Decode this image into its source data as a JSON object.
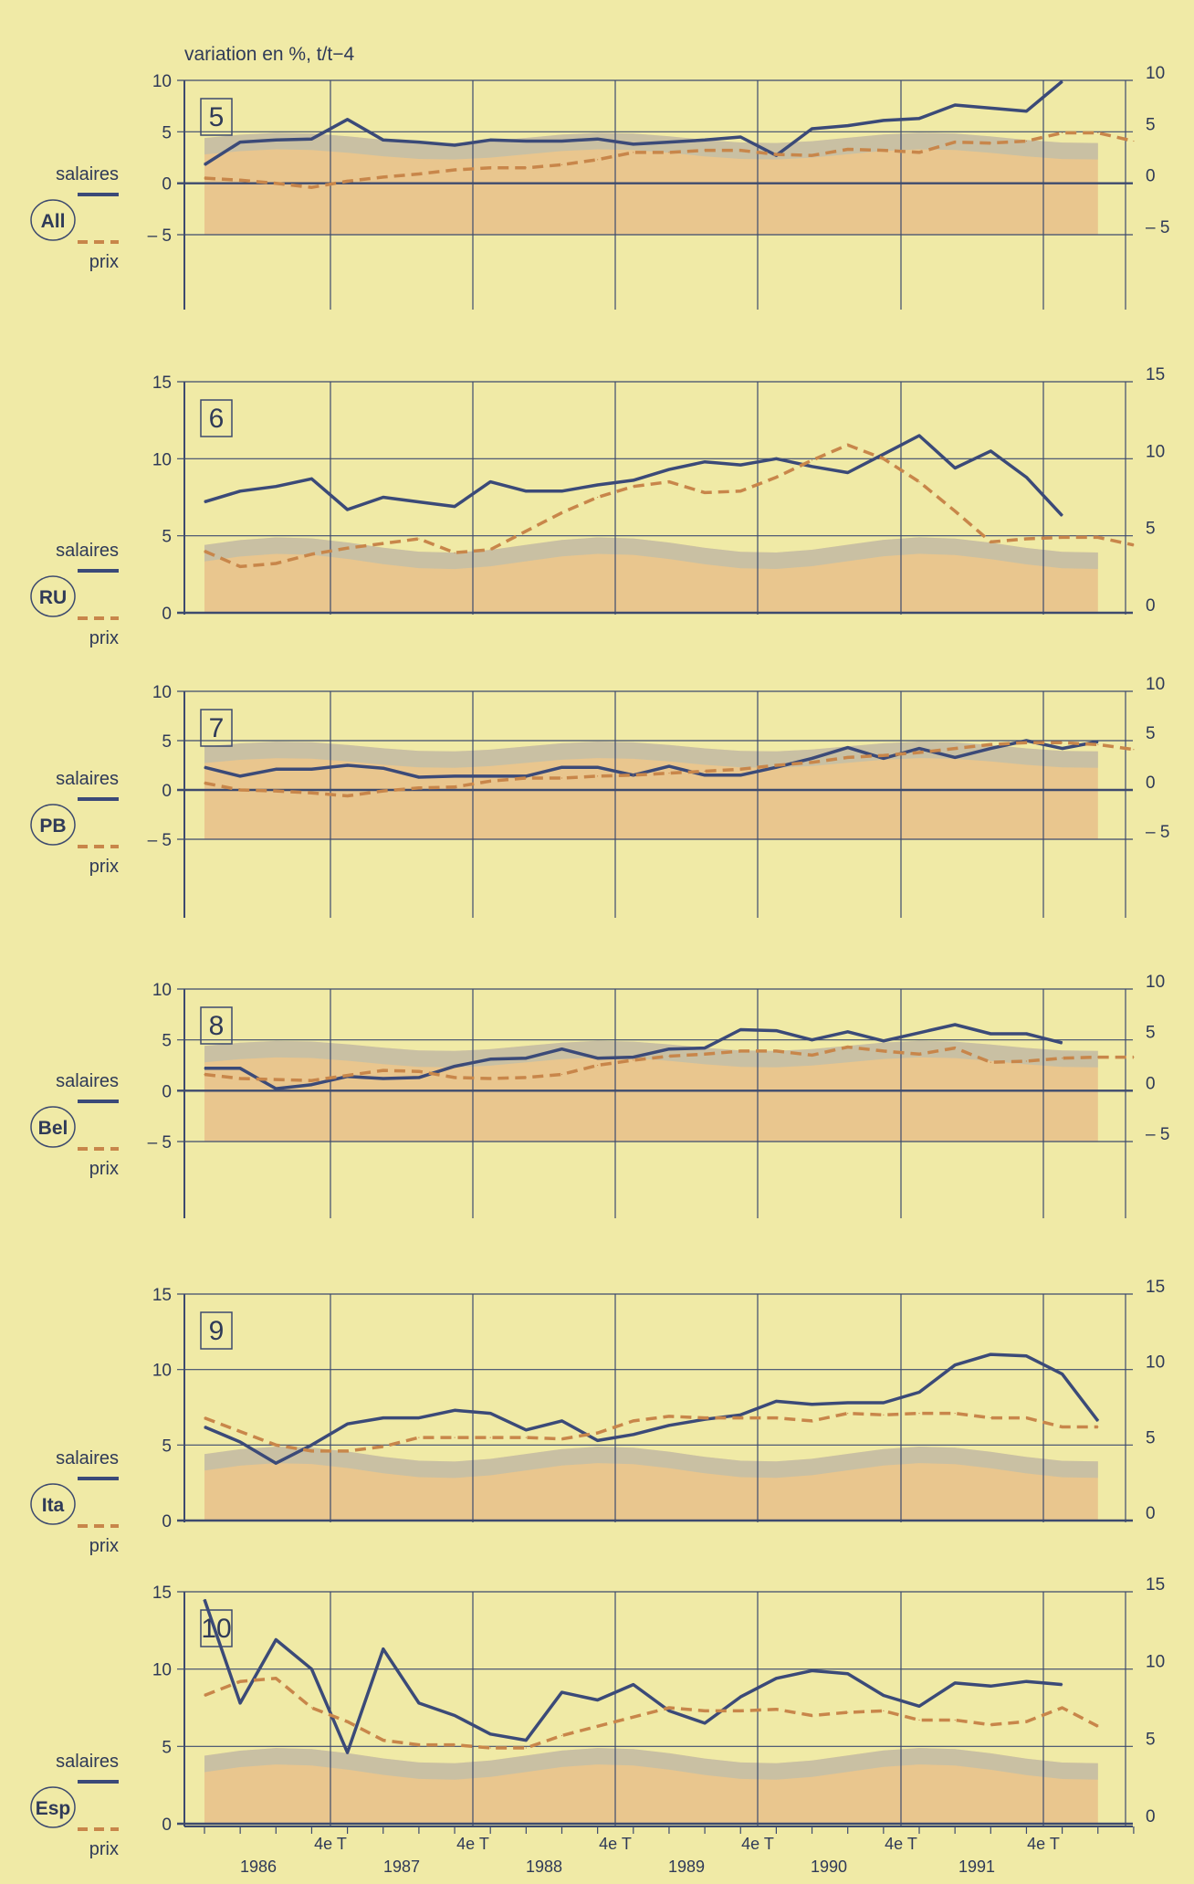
{
  "unit_label": "variation en %, t/t−4",
  "legend": {
    "wage_label": "salaires",
    "price_label": "prix"
  },
  "colors": {
    "background": "#f0eaa6",
    "grid": "#3d4a6e",
    "wage_line": "#3b4a78",
    "price_line": "#c8864a",
    "band_fill": "#e8c08a",
    "band_top": "#b4bcb0"
  },
  "x_axis": {
    "quarter_markers": [
      "4e T",
      "4e T",
      "4e T",
      "4e T",
      "4e T",
      "4e T"
    ],
    "years": [
      "1986",
      "1987",
      "1988",
      "1989",
      "1990",
      "1991"
    ]
  },
  "chart_data": [
    {
      "type": "line",
      "panel_number": "5",
      "country": "All",
      "ylim": [
        -5,
        10
      ],
      "y_ticks": [
        -5,
        0,
        5,
        10
      ],
      "x": [
        "1985 T3",
        "1985 T4",
        "1986 T1",
        "1986 T2",
        "1986 T3",
        "1986 T4",
        "1987 T1",
        "1987 T2",
        "1987 T3",
        "1987 T4",
        "1988 T1",
        "1988 T2",
        "1988 T3",
        "1988 T4",
        "1989 T1",
        "1989 T2",
        "1989 T3",
        "1989 T4",
        "1990 T1",
        "1990 T2",
        "1990 T3",
        "1990 T4",
        "1991 T1",
        "1991 T2",
        "1991 T3",
        "1991 T4",
        "1992 T1"
      ],
      "series": [
        {
          "name": "salaires",
          "style": "solid",
          "values": [
            1.8,
            4.0,
            4.2,
            4.3,
            6.2,
            4.2,
            4.0,
            3.7,
            4.2,
            4.1,
            4.1,
            4.3,
            3.8,
            4.0,
            4.2,
            4.5,
            2.7,
            5.3,
            5.6,
            6.1,
            6.3,
            7.6,
            7.3,
            7.0,
            9.9,
            null,
            null
          ]
        },
        {
          "name": "prix",
          "style": "dashed",
          "values": [
            0.5,
            0.3,
            0.0,
            -0.4,
            0.2,
            0.6,
            0.9,
            1.3,
            1.5,
            1.5,
            1.8,
            2.3,
            3.0,
            3.0,
            3.2,
            3.2,
            2.8,
            2.7,
            3.3,
            3.2,
            3.0,
            4.0,
            3.9,
            4.1,
            4.9,
            4.9,
            4.1
          ]
        }
      ]
    },
    {
      "type": "line",
      "panel_number": "6",
      "country": "RU",
      "ylim": [
        0,
        15
      ],
      "y_ticks": [
        0,
        5,
        10,
        15
      ],
      "x": [
        "1985 T3",
        "1985 T4",
        "1986 T1",
        "1986 T2",
        "1986 T3",
        "1986 T4",
        "1987 T1",
        "1987 T2",
        "1987 T3",
        "1987 T4",
        "1988 T1",
        "1988 T2",
        "1988 T3",
        "1988 T4",
        "1989 T1",
        "1989 T2",
        "1989 T3",
        "1989 T4",
        "1990 T1",
        "1990 T2",
        "1990 T3",
        "1990 T4",
        "1991 T1",
        "1991 T2",
        "1991 T3",
        "1991 T4",
        "1992 T1"
      ],
      "series": [
        {
          "name": "salaires",
          "style": "solid",
          "values": [
            7.2,
            7.9,
            8.2,
            8.7,
            6.7,
            7.5,
            7.2,
            6.9,
            8.5,
            7.9,
            7.9,
            8.3,
            8.6,
            9.3,
            9.8,
            9.6,
            10.0,
            9.5,
            9.1,
            10.3,
            11.5,
            9.4,
            10.5,
            8.8,
            6.3,
            null,
            null
          ]
        },
        {
          "name": "prix",
          "style": "dashed",
          "values": [
            4.0,
            3.0,
            3.2,
            3.8,
            4.2,
            4.5,
            4.8,
            3.9,
            4.1,
            5.3,
            6.5,
            7.5,
            8.2,
            8.5,
            7.8,
            7.9,
            8.8,
            9.9,
            10.9,
            10.0,
            8.5,
            6.6,
            4.6,
            4.8,
            4.9,
            4.9,
            4.4
          ]
        }
      ]
    },
    {
      "type": "line",
      "panel_number": "7",
      "country": "PB",
      "ylim": [
        -5,
        10
      ],
      "y_ticks": [
        -5,
        0,
        5,
        10
      ],
      "x": [
        "1985 T3",
        "1985 T4",
        "1986 T1",
        "1986 T2",
        "1986 T3",
        "1986 T4",
        "1987 T1",
        "1987 T2",
        "1987 T3",
        "1987 T4",
        "1988 T1",
        "1988 T2",
        "1988 T3",
        "1988 T4",
        "1989 T1",
        "1989 T2",
        "1989 T3",
        "1989 T4",
        "1990 T1",
        "1990 T2",
        "1990 T3",
        "1990 T4",
        "1991 T1",
        "1991 T2",
        "1991 T3",
        "1991 T4",
        "1992 T1"
      ],
      "series": [
        {
          "name": "salaires",
          "style": "solid",
          "values": [
            2.3,
            1.4,
            2.1,
            2.1,
            2.5,
            2.2,
            1.3,
            1.4,
            1.4,
            1.4,
            2.3,
            2.3,
            1.5,
            2.4,
            1.5,
            1.5,
            2.3,
            3.2,
            4.3,
            3.2,
            4.2,
            3.3,
            4.2,
            5.0,
            4.2,
            4.9,
            null
          ]
        },
        {
          "name": "prix",
          "style": "dashed",
          "values": [
            0.7,
            0.0,
            -0.1,
            -0.3,
            -0.6,
            -0.1,
            0.2,
            0.3,
            0.9,
            1.2,
            1.2,
            1.4,
            1.5,
            1.7,
            1.9,
            2.1,
            2.5,
            2.8,
            3.3,
            3.5,
            3.8,
            4.2,
            4.6,
            4.8,
            4.8,
            4.6,
            4.1
          ]
        }
      ]
    },
    {
      "type": "line",
      "panel_number": "8",
      "country": "Bel",
      "ylim": [
        -5,
        10
      ],
      "y_ticks": [
        -5,
        0,
        5,
        10
      ],
      "x": [
        "1985 T3",
        "1985 T4",
        "1986 T1",
        "1986 T2",
        "1986 T3",
        "1986 T4",
        "1987 T1",
        "1987 T2",
        "1987 T3",
        "1987 T4",
        "1988 T1",
        "1988 T2",
        "1988 T3",
        "1988 T4",
        "1989 T1",
        "1989 T2",
        "1989 T3",
        "1989 T4",
        "1990 T1",
        "1990 T2",
        "1990 T3",
        "1990 T4",
        "1991 T1",
        "1991 T2",
        "1991 T3",
        "1991 T4",
        "1992 T1"
      ],
      "series": [
        {
          "name": "salaires",
          "style": "solid",
          "values": [
            2.2,
            2.2,
            0.2,
            0.6,
            1.4,
            1.2,
            1.3,
            2.4,
            3.1,
            3.2,
            4.1,
            3.2,
            3.3,
            4.1,
            4.2,
            6.0,
            5.9,
            5.0,
            5.8,
            4.9,
            5.7,
            6.5,
            5.6,
            5.6,
            4.7,
            null,
            null
          ]
        },
        {
          "name": "prix",
          "style": "dashed",
          "values": [
            1.6,
            1.2,
            1.1,
            1.0,
            1.5,
            2.0,
            1.9,
            1.3,
            1.2,
            1.3,
            1.6,
            2.5,
            3.0,
            3.4,
            3.6,
            3.9,
            3.9,
            3.5,
            4.3,
            3.9,
            3.6,
            4.2,
            2.8,
            2.9,
            3.2,
            3.3,
            3.3
          ]
        }
      ]
    },
    {
      "type": "line",
      "panel_number": "9",
      "country": "Ita",
      "ylim": [
        0,
        15
      ],
      "y_ticks": [
        0,
        5,
        10,
        15
      ],
      "x": [
        "1985 T3",
        "1985 T4",
        "1986 T1",
        "1986 T2",
        "1986 T3",
        "1986 T4",
        "1987 T1",
        "1987 T2",
        "1987 T3",
        "1987 T4",
        "1988 T1",
        "1988 T2",
        "1988 T3",
        "1988 T4",
        "1989 T1",
        "1989 T2",
        "1989 T3",
        "1989 T4",
        "1990 T1",
        "1990 T2",
        "1990 T3",
        "1990 T4",
        "1991 T1",
        "1991 T2",
        "1991 T3",
        "1991 T4",
        "1992 T1"
      ],
      "series": [
        {
          "name": "salaires",
          "style": "solid",
          "values": [
            6.2,
            5.2,
            3.8,
            5.0,
            6.4,
            6.8,
            6.8,
            7.3,
            7.1,
            6.0,
            6.6,
            5.3,
            5.7,
            6.3,
            6.7,
            7.0,
            7.9,
            7.7,
            7.8,
            7.8,
            8.5,
            10.3,
            11.0,
            10.9,
            9.7,
            6.6,
            null
          ]
        },
        {
          "name": "prix",
          "style": "dashed",
          "values": [
            6.8,
            5.9,
            5.0,
            4.6,
            4.6,
            4.9,
            5.5,
            5.5,
            5.5,
            5.5,
            5.4,
            5.8,
            6.6,
            6.9,
            6.8,
            6.8,
            6.8,
            6.6,
            7.1,
            7.0,
            7.1,
            7.1,
            6.8,
            6.8,
            6.2,
            6.2,
            null
          ]
        }
      ]
    },
    {
      "type": "line",
      "panel_number": "10",
      "country": "Esp",
      "ylim": [
        0,
        15
      ],
      "y_ticks": [
        0,
        5,
        10,
        15
      ],
      "x": [
        "1985 T3",
        "1985 T4",
        "1986 T1",
        "1986 T2",
        "1986 T3",
        "1986 T4",
        "1987 T1",
        "1987 T2",
        "1987 T3",
        "1987 T4",
        "1988 T1",
        "1988 T2",
        "1988 T3",
        "1988 T4",
        "1989 T1",
        "1989 T2",
        "1989 T3",
        "1989 T4",
        "1990 T1",
        "1990 T2",
        "1990 T3",
        "1990 T4",
        "1991 T1",
        "1991 T2",
        "1991 T3",
        "1991 T4",
        "1992 T1"
      ],
      "series": [
        {
          "name": "salaires",
          "style": "solid",
          "values": [
            14.5,
            7.8,
            11.9,
            10.0,
            4.6,
            11.3,
            7.8,
            7.0,
            5.8,
            5.4,
            8.5,
            8.0,
            9.0,
            7.3,
            6.5,
            8.2,
            9.4,
            9.9,
            9.7,
            8.3,
            7.6,
            9.1,
            8.9,
            9.2,
            9.0,
            null,
            null
          ]
        },
        {
          "name": "prix",
          "style": "dashed",
          "values": [
            8.3,
            9.2,
            9.4,
            7.5,
            6.6,
            5.4,
            5.1,
            5.1,
            4.9,
            4.9,
            5.7,
            6.3,
            6.9,
            7.5,
            7.3,
            7.3,
            7.4,
            7.0,
            7.2,
            7.3,
            6.7,
            6.7,
            6.4,
            6.6,
            7.5,
            6.3,
            null
          ]
        }
      ]
    }
  ]
}
